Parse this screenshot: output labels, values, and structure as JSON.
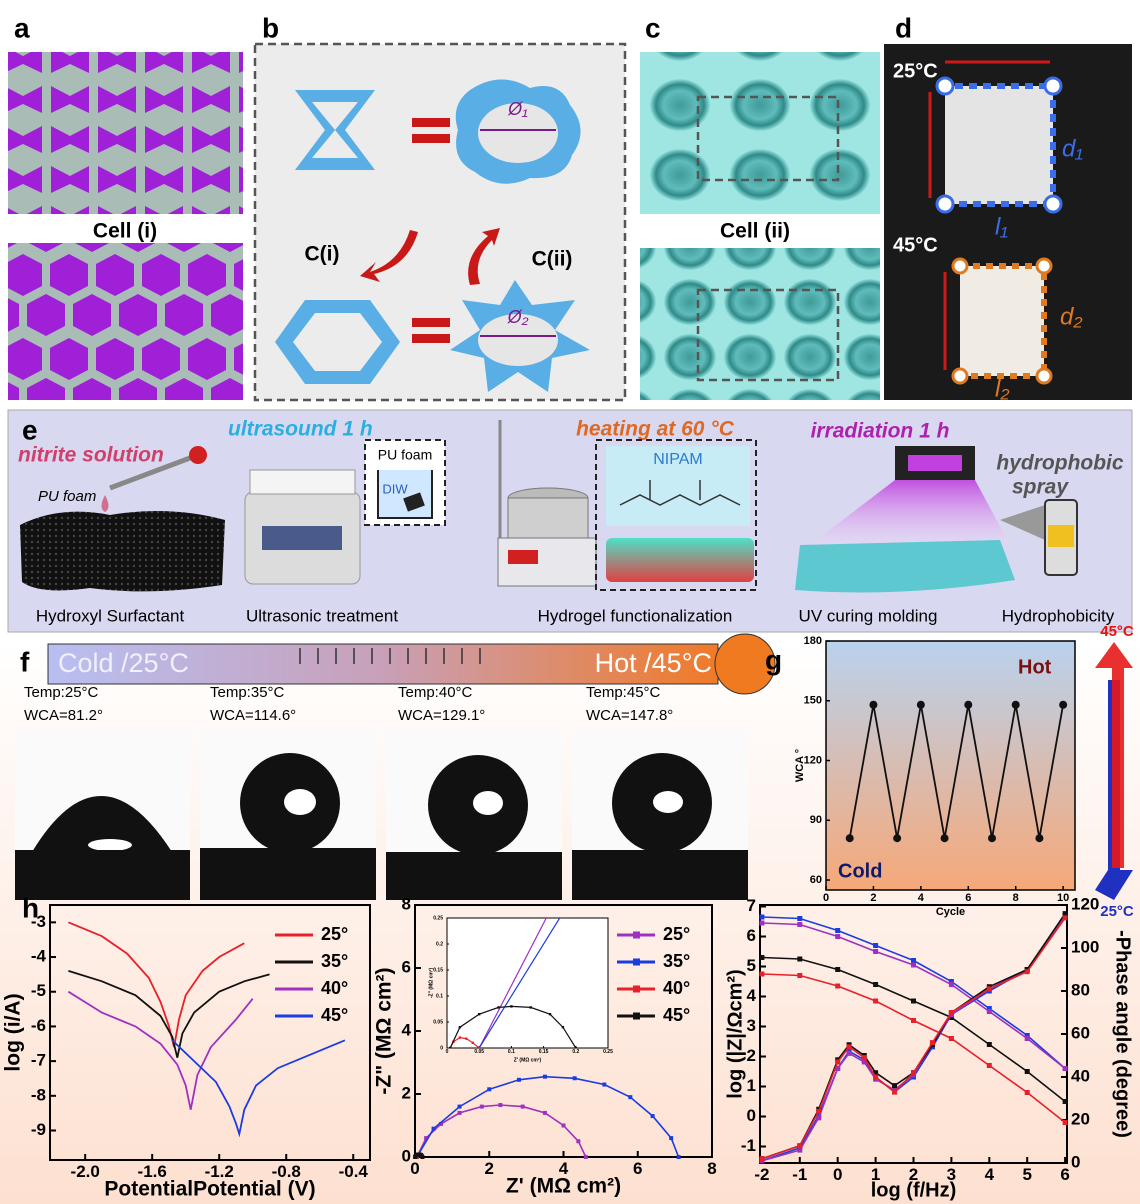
{
  "figure": {
    "a": {
      "letter": "a",
      "caption": "Cell (i)"
    },
    "b": {
      "letter": "b",
      "labels": [
        "C(i)",
        "C(ii)"
      ],
      "diameters": [
        "Ø₁",
        "Ø₂"
      ]
    },
    "c": {
      "letter": "c",
      "caption": "Cell (ii)"
    },
    "d": {
      "letter": "d",
      "temps": [
        "25°C",
        "45°C"
      ],
      "dims": [
        "d₁",
        "l₁",
        "d₂",
        "l₂"
      ]
    },
    "e": {
      "letter": "e",
      "annotations": {
        "nitrite": "nitrite solution",
        "pu_foam": "PU foam",
        "ultrasound": "ultrasound 1 h",
        "beaker_foam": "PU foam",
        "diw": "DIW",
        "heating": "heating at  60 °C",
        "nipam": "NIPAM",
        "irradiation": "irradiation 1 h",
        "spray": [
          "hydrophobic",
          "spray"
        ]
      },
      "steps": [
        "Hydroxyl Surfactant",
        "Ultrasonic treatment",
        "Hydrogel functionalization",
        "UV curing molding",
        "Hydrophobicity"
      ]
    },
    "f": {
      "letter": "f",
      "cold": "Cold  /25°C",
      "hot": "Hot  /45°C",
      "samples": [
        {
          "temp": "Temp:25°C",
          "wca": "WCA=81.2°"
        },
        {
          "temp": "Temp:35°C",
          "wca": "WCA=114.6°"
        },
        {
          "temp": "Temp:40°C",
          "wca": "WCA=129.1°"
        },
        {
          "temp": "Temp:45°C",
          "wca": "WCA=147.8°"
        }
      ]
    },
    "g": {
      "letter": "g"
    },
    "h": {
      "letter": "h"
    }
  },
  "chart_data": [
    {
      "type": "line",
      "x": [
        1,
        2,
        3,
        4,
        5,
        6,
        7,
        8,
        9,
        10
      ],
      "xlim": [
        0,
        10.5
      ],
      "ylim": [
        55,
        180
      ],
      "xticks": [
        0,
        2,
        4,
        6,
        8,
        10
      ],
      "yticks": [
        60,
        90,
        120,
        150,
        180
      ],
      "xlabel": "Cycle",
      "ylabel": "WCA °",
      "marker": "circle",
      "series": [
        {
          "color": "#111111",
          "values": [
            81,
            148,
            81,
            148,
            81,
            148,
            81,
            148,
            81,
            148
          ]
        }
      ],
      "annotations": [
        "Hot",
        "Cold"
      ],
      "arrow_labels": [
        "45°C",
        "25°C"
      ]
    },
    {
      "type": "line",
      "xlim": [
        -2.21,
        -0.3
      ],
      "ylim": [
        -9.85,
        -2.5
      ],
      "xticks": [
        {
          "value": -2,
          "label": "-2.0"
        },
        -1.6,
        -1.2,
        -0.8,
        -0.4
      ],
      "yticks": [
        -3,
        -4,
        -5,
        -6,
        -7,
        -8,
        -9
      ],
      "xlabel": "PotentialPotential (V)",
      "ylabel": "log (i/A)",
      "legend": "upper right",
      "series": [
        {
          "name": "25°",
          "color": "#e8202a",
          "x": [
            -2.1,
            -1.9,
            -1.75,
            -1.62,
            -1.55,
            -1.5,
            -1.47,
            -1.44,
            -1.4,
            -1.3,
            -1.2,
            -1.05
          ],
          "values": [
            -3.0,
            -3.4,
            -3.9,
            -4.6,
            -5.3,
            -6.0,
            -6.6,
            -5.8,
            -5.1,
            -4.4,
            -4.0,
            -3.6
          ]
        },
        {
          "name": "35°",
          "color": "#111111",
          "x": [
            -2.1,
            -1.9,
            -1.7,
            -1.55,
            -1.48,
            -1.45,
            -1.42,
            -1.35,
            -1.2,
            -1.05,
            -0.9
          ],
          "values": [
            -4.4,
            -4.7,
            -5.1,
            -5.7,
            -6.3,
            -6.9,
            -6.2,
            -5.6,
            -5.0,
            -4.7,
            -4.5
          ]
        },
        {
          "name": "40°",
          "color": "#a030c0",
          "x": [
            -2.1,
            -1.9,
            -1.7,
            -1.55,
            -1.45,
            -1.4,
            -1.37,
            -1.33,
            -1.25,
            -1.1,
            -1.0
          ],
          "values": [
            -5.0,
            -5.6,
            -6.0,
            -6.5,
            -7.1,
            -7.7,
            -8.4,
            -7.4,
            -6.6,
            -5.8,
            -5.2
          ]
        },
        {
          "name": "45°",
          "color": "#1a3ce0",
          "x": [
            -1.48,
            -1.35,
            -1.22,
            -1.14,
            -1.1,
            -1.08,
            -1.05,
            -0.98,
            -0.85,
            -0.65,
            -0.45
          ],
          "values": [
            -6.4,
            -7.0,
            -7.6,
            -8.3,
            -8.8,
            -9.1,
            -8.4,
            -7.7,
            -7.2,
            -6.8,
            -6.4
          ]
        }
      ]
    },
    {
      "type": "line",
      "xlim": [
        0,
        8
      ],
      "ylim": [
        0,
        8
      ],
      "xticks": [
        0,
        2,
        4,
        6,
        8
      ],
      "yticks": [
        0,
        2,
        4,
        6,
        8
      ],
      "xlabel": "Z'  (MΩ cm²)",
      "ylabel": "-Z\" (MΩ cm²)",
      "legend": "upper right",
      "marker": "square",
      "inset": {
        "xlim": [
          0,
          0.25
        ],
        "ylim": [
          0,
          0.25
        ],
        "xticks": [
          0,
          0.05,
          0.1,
          0.15,
          0.2,
          0.25
        ],
        "yticks": [
          0,
          0.05,
          0.1,
          0.15,
          0.2,
          0.25
        ],
        "xlabel": "Z' (MΩ cm²)",
        "ylabel": "-Z\" (MΩ cm²)"
      },
      "series": [
        {
          "name": "25°",
          "color": "#a030c0",
          "x": [
            0.05,
            0.3,
            0.7,
            1.2,
            1.8,
            2.3,
            2.9,
            3.5,
            4.0,
            4.4,
            4.6
          ],
          "values": [
            0,
            0.6,
            1.05,
            1.4,
            1.6,
            1.65,
            1.6,
            1.4,
            1.0,
            0.5,
            0
          ]
        },
        {
          "name": "35°",
          "color": "#1a3ce0",
          "x": [
            0.05,
            0.5,
            1.2,
            2.0,
            2.8,
            3.5,
            4.3,
            5.1,
            5.8,
            6.4,
            6.9,
            7.1
          ],
          "values": [
            0,
            0.9,
            1.6,
            2.15,
            2.45,
            2.55,
            2.5,
            2.3,
            1.9,
            1.3,
            0.6,
            0
          ]
        },
        {
          "name": "40°",
          "color": "#e8202a",
          "x": [
            0.005,
            0.01,
            0.02,
            0.03,
            0.04,
            0.05
          ],
          "values": [
            0,
            0.012,
            0.02,
            0.018,
            0.01,
            0
          ]
        },
        {
          "name": "45°",
          "color": "#111111",
          "x": [
            0.005,
            0.02,
            0.05,
            0.08,
            0.1,
            0.13,
            0.16,
            0.18,
            0.2
          ],
          "values": [
            0,
            0.04,
            0.065,
            0.078,
            0.08,
            0.078,
            0.065,
            0.04,
            0
          ]
        }
      ]
    },
    {
      "type": "line",
      "xlim": [
        -2.05,
        6.05
      ],
      "ylim": [
        -1.55,
        7.05
      ],
      "y2lim": [
        0,
        120
      ],
      "xticks": [
        -2,
        -1,
        0,
        1,
        2,
        3,
        4,
        5,
        6
      ],
      "yticks": [
        -1,
        0,
        1,
        2,
        3,
        4,
        5,
        6,
        7
      ],
      "y2ticks": [
        0,
        20,
        40,
        60,
        80,
        100,
        120
      ],
      "xlabel": "log (f/Hz)",
      "ylabel": "log (|Z|/Ωcm²)",
      "y2label": "-Phase angle (degree)",
      "marker": "square",
      "series": [
        {
          "color": "#1a3ce0",
          "x": [
            -2,
            -1,
            0,
            1,
            2,
            3,
            4,
            5,
            6
          ],
          "values": [
            6.65,
            6.6,
            6.2,
            5.7,
            5.2,
            4.5,
            3.6,
            2.7,
            1.6
          ]
        },
        {
          "color": "#a030c0",
          "x": [
            -2,
            -1,
            0,
            1,
            2,
            3,
            4,
            5,
            6
          ],
          "values": [
            6.45,
            6.4,
            6.0,
            5.5,
            5.05,
            4.4,
            3.5,
            2.6,
            1.6
          ]
        },
        {
          "color": "#111111",
          "x": [
            -2,
            -1,
            0,
            1,
            2,
            3,
            4,
            5,
            6
          ],
          "values": [
            5.3,
            5.25,
            4.9,
            4.4,
            3.85,
            3.3,
            2.4,
            1.5,
            0.5
          ]
        },
        {
          "color": "#e8202a",
          "x": [
            -2,
            -1,
            0,
            1,
            2,
            3,
            4,
            5,
            6
          ],
          "values": [
            4.75,
            4.7,
            4.35,
            3.85,
            3.2,
            2.6,
            1.7,
            0.8,
            -0.2
          ]
        },
        {
          "color": "#1a3ce0",
          "axis": "y2",
          "x": [
            -2,
            -1,
            -0.5,
            0,
            0.3,
            0.7,
            1,
            1.5,
            2,
            2.5,
            3,
            4,
            5,
            6
          ],
          "values": [
            1,
            7,
            22,
            44,
            52,
            48,
            40,
            33,
            40,
            54,
            69,
            80,
            90,
            115
          ]
        },
        {
          "color": "#a030c0",
          "axis": "y2",
          "x": [
            -2,
            -1,
            -0.5,
            0,
            0.3,
            0.7,
            1,
            1.5,
            2,
            2.5,
            3,
            4,
            5,
            6
          ],
          "values": [
            1,
            6,
            21,
            44,
            51,
            47,
            39,
            34,
            41,
            55,
            69,
            81,
            90,
            115
          ]
        },
        {
          "color": "#111111",
          "axis": "y2",
          "x": [
            -2,
            -1,
            -0.5,
            0,
            0.3,
            0.7,
            1,
            1.5,
            2,
            2.5,
            3,
            4,
            5,
            6
          ],
          "values": [
            2,
            8,
            25,
            48,
            55,
            50,
            42,
            36,
            42,
            55,
            70,
            82,
            90,
            116
          ]
        },
        {
          "color": "#e8202a",
          "axis": "y2",
          "x": [
            -2,
            -1,
            -0.5,
            0,
            0.3,
            0.7,
            1,
            1.5,
            2,
            2.5,
            3,
            4,
            5,
            6
          ],
          "values": [
            2,
            8,
            24,
            47,
            54,
            49,
            40,
            33,
            42,
            56,
            70,
            81,
            89,
            114
          ]
        }
      ]
    }
  ]
}
